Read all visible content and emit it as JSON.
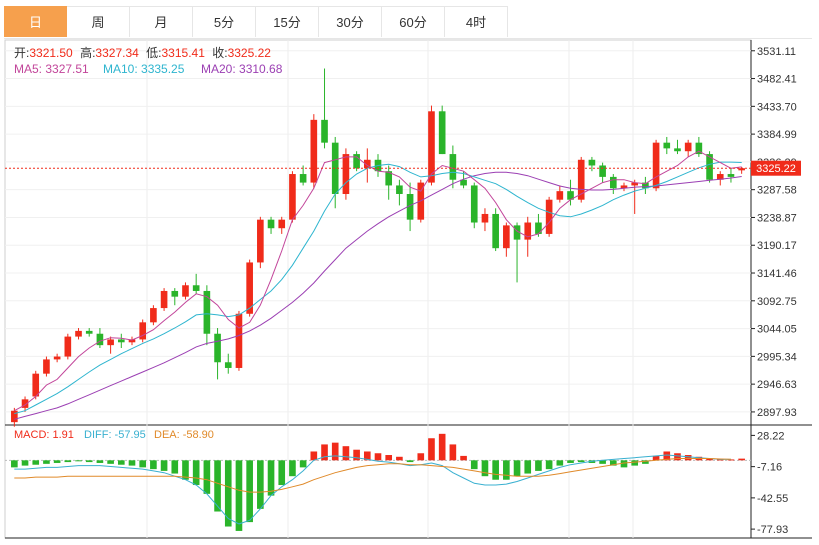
{
  "tabs": [
    "日",
    "周",
    "月",
    "5分",
    "15分",
    "30分",
    "60分",
    "4时"
  ],
  "active_tab": 0,
  "colors": {
    "up": "#f02b1a",
    "down": "#2ab42a",
    "ma5": "#c2459a",
    "ma10": "#2eb5cf",
    "ma20": "#9b3fb3",
    "dea": "#e08a2a",
    "diff": "#39b0d0"
  },
  "ohlc_legend": {
    "open_label": "开:",
    "open": "3321.50",
    "high_label": "高:",
    "high": "3327.34",
    "low_label": "低:",
    "low": "3315.41",
    "close_label": "收:",
    "close": "3325.22"
  },
  "ma_legend": {
    "ma5": "MA5: 3327.51",
    "ma10": "MA10: 3335.25",
    "ma20": "MA20: 3310.68"
  },
  "macd_legend": {
    "macd": "MACD: 1.91",
    "diff": "DIFF: -57.95",
    "dea": "DEA: -58.90"
  },
  "last_price": "3325.22",
  "chart_data": [
    {
      "type": "candlestick",
      "ylim": [
        2875,
        3550
      ],
      "y_ticks": [
        "3531.11",
        "3482.41",
        "3433.70",
        "3384.99",
        "3336.29",
        "3287.58",
        "3238.87",
        "3190.17",
        "3141.46",
        "3092.75",
        "3044.05",
        "2995.34",
        "2946.63",
        "2897.93"
      ],
      "y_tick_values": [
        3531.11,
        3482.41,
        3433.7,
        3384.99,
        3336.29,
        3287.58,
        3238.87,
        3190.17,
        3141.46,
        3092.75,
        3044.05,
        2995.34,
        2946.63,
        2897.93
      ],
      "candles": [
        [
          2880,
          2905,
          2872,
          2900
        ],
        [
          2905,
          2925,
          2898,
          2920
        ],
        [
          2925,
          2970,
          2920,
          2965
        ],
        [
          2965,
          2995,
          2960,
          2990
        ],
        [
          2990,
          3000,
          2985,
          2995
        ],
        [
          2995,
          3035,
          2990,
          3030
        ],
        [
          3030,
          3045,
          3025,
          3040
        ],
        [
          3040,
          3045,
          3030,
          3035
        ],
        [
          3035,
          3045,
          3010,
          3015
        ],
        [
          3015,
          3030,
          3000,
          3025
        ],
        [
          3025,
          3035,
          3010,
          3020
        ],
        [
          3020,
          3030,
          3015,
          3025
        ],
        [
          3025,
          3060,
          3020,
          3055
        ],
        [
          3055,
          3085,
          3050,
          3080
        ],
        [
          3080,
          3115,
          3075,
          3110
        ],
        [
          3110,
          3115,
          3085,
          3100
        ],
        [
          3100,
          3125,
          3095,
          3120
        ],
        [
          3120,
          3140,
          3105,
          3110
        ],
        [
          3110,
          3120,
          3015,
          3035
        ],
        [
          3035,
          3045,
          2955,
          2985
        ],
        [
          2985,
          3000,
          2965,
          2975
        ],
        [
          2975,
          3075,
          2970,
          3070
        ],
        [
          3070,
          3165,
          3065,
          3160
        ],
        [
          3160,
          3240,
          3150,
          3235
        ],
        [
          3235,
          3240,
          3210,
          3220
        ],
        [
          3220,
          3240,
          3210,
          3235
        ],
        [
          3235,
          3320,
          3230,
          3315
        ],
        [
          3315,
          3330,
          3295,
          3300
        ],
        [
          3300,
          3420,
          3290,
          3410
        ],
        [
          3410,
          3500,
          3360,
          3370
        ],
        [
          3370,
          3380,
          3255,
          3280
        ],
        [
          3280,
          3360,
          3270,
          3350
        ],
        [
          3350,
          3355,
          3320,
          3325
        ],
        [
          3325,
          3360,
          3300,
          3340
        ],
        [
          3340,
          3350,
          3310,
          3320
        ],
        [
          3320,
          3330,
          3270,
          3295
        ],
        [
          3295,
          3305,
          3260,
          3280
        ],
        [
          3280,
          3300,
          3215,
          3235
        ],
        [
          3235,
          3305,
          3230,
          3300
        ],
        [
          3300,
          3435,
          3295,
          3425
        ],
        [
          3425,
          3435,
          3350,
          3350
        ],
        [
          3350,
          3365,
          3290,
          3305
        ],
        [
          3305,
          3320,
          3290,
          3295
        ],
        [
          3295,
          3300,
          3220,
          3230
        ],
        [
          3230,
          3255,
          3215,
          3245
        ],
        [
          3245,
          3255,
          3180,
          3185
        ],
        [
          3185,
          3230,
          3170,
          3225
        ],
        [
          3225,
          3230,
          3125,
          3200
        ],
        [
          3200,
          3240,
          3170,
          3230
        ],
        [
          3230,
          3245,
          3205,
          3210
        ],
        [
          3210,
          3275,
          3205,
          3270
        ],
        [
          3270,
          3295,
          3265,
          3285
        ],
        [
          3285,
          3305,
          3260,
          3270
        ],
        [
          3270,
          3345,
          3265,
          3340
        ],
        [
          3340,
          3345,
          3320,
          3330
        ],
        [
          3330,
          3335,
          3300,
          3310
        ],
        [
          3310,
          3315,
          3280,
          3290
        ],
        [
          3290,
          3300,
          3285,
          3295
        ],
        [
          3295,
          3305,
          3245,
          3300
        ],
        [
          3300,
          3310,
          3280,
          3290
        ],
        [
          3290,
          3375,
          3285,
          3370
        ],
        [
          3370,
          3380,
          3350,
          3360
        ],
        [
          3360,
          3375,
          3350,
          3355
        ],
        [
          3355,
          3375,
          3345,
          3370
        ],
        [
          3370,
          3380,
          3345,
          3350
        ],
        [
          3350,
          3355,
          3300,
          3305
        ],
        [
          3305,
          3320,
          3295,
          3315
        ],
        [
          3315,
          3325,
          3300,
          3310
        ],
        [
          3321.5,
          3327.34,
          3315.41,
          3325.22
        ]
      ],
      "ma5": [
        2900,
        2910,
        2925,
        2945,
        2955,
        2975,
        2995,
        3010,
        3022,
        3028,
        3027,
        3024,
        3032,
        3042,
        3058,
        3073,
        3090,
        3105,
        3100,
        3085,
        3060,
        3045,
        3055,
        3085,
        3130,
        3180,
        3235,
        3260,
        3290,
        3335,
        3340,
        3345,
        3345,
        3330,
        3320,
        3318,
        3310,
        3292,
        3285,
        3315,
        3330,
        3325,
        3320,
        3305,
        3290,
        3265,
        3235,
        3215,
        3205,
        3210,
        3230,
        3255,
        3270,
        3280,
        3290,
        3300,
        3305,
        3305,
        3300,
        3298,
        3310,
        3320,
        3330,
        3345,
        3355,
        3345,
        3335,
        3325,
        3327.51
      ],
      "ma10": [
        2895,
        2900,
        2910,
        2920,
        2930,
        2942,
        2955,
        2968,
        2980,
        2990,
        3000,
        3009,
        3018,
        3026,
        3035,
        3045,
        3056,
        3068,
        3070,
        3068,
        3065,
        3068,
        3080,
        3095,
        3110,
        3130,
        3155,
        3185,
        3215,
        3250,
        3280,
        3300,
        3315,
        3325,
        3330,
        3332,
        3328,
        3318,
        3310,
        3312,
        3316,
        3318,
        3316,
        3310,
        3304,
        3298,
        3288,
        3276,
        3265,
        3255,
        3248,
        3242,
        3240,
        3245,
        3252,
        3260,
        3270,
        3278,
        3285,
        3290,
        3295,
        3302,
        3310,
        3318,
        3326,
        3332,
        3336,
        3336,
        3335.25
      ],
      "ma20": [
        2885,
        2890,
        2895,
        2900,
        2905,
        2912,
        2920,
        2928,
        2936,
        2944,
        2952,
        2960,
        2968,
        2976,
        2984,
        2993,
        3002,
        3012,
        3018,
        3022,
        3026,
        3032,
        3040,
        3050,
        3062,
        3076,
        3090,
        3106,
        3124,
        3145,
        3165,
        3185,
        3200,
        3215,
        3228,
        3240,
        3250,
        3260,
        3268,
        3278,
        3288,
        3298,
        3306,
        3312,
        3316,
        3318,
        3318,
        3316,
        3312,
        3306,
        3300,
        3294,
        3290,
        3288,
        3287,
        3287,
        3288,
        3290,
        3292,
        3293,
        3294,
        3296,
        3298,
        3300,
        3302,
        3304,
        3306,
        3308,
        3310.68
      ]
    },
    {
      "type": "bar",
      "ylim": [
        -88,
        40
      ],
      "y_ticks": [
        "28.22",
        "-7.16",
        "-42.55",
        "-77.93"
      ],
      "y_tick_values": [
        28.22,
        -7.16,
        -42.55,
        -77.93
      ],
      "macd": [
        -8,
        -6,
        -5,
        -4,
        -3,
        -2,
        -1,
        -2,
        -3,
        -4,
        -5,
        -6,
        -8,
        -10,
        -12,
        -15,
        -22,
        -28,
        -38,
        -58,
        -75,
        -80,
        -70,
        -55,
        -40,
        -28,
        -18,
        -8,
        10,
        18,
        20,
        16,
        12,
        10,
        8,
        6,
        4,
        -2,
        8,
        25,
        30,
        18,
        5,
        -10,
        -18,
        -22,
        -22,
        -18,
        -15,
        -12,
        -10,
        -6,
        -3,
        -2,
        -3,
        -4,
        -6,
        -8,
        -6,
        -4,
        5,
        10,
        8,
        6,
        4,
        2,
        1,
        1,
        1.91
      ],
      "diff": [
        -10,
        -10,
        -9,
        -8,
        -8,
        -7,
        -6,
        -6,
        -6,
        -7,
        -8,
        -9,
        -10,
        -12,
        -14,
        -18,
        -22,
        -28,
        -38,
        -52,
        -66,
        -72,
        -68,
        -55,
        -40,
        -30,
        -22,
        -12,
        0,
        4,
        5,
        4,
        3,
        1,
        -1,
        -2,
        -4,
        -6,
        -5,
        -3,
        -6,
        -14,
        -20,
        -26,
        -28,
        -28,
        -27,
        -24,
        -20,
        -16,
        -12,
        -8,
        -5,
        -3,
        -1,
        0,
        1,
        2,
        3,
        4,
        5,
        6,
        5,
        4,
        3,
        2,
        1,
        1,
        -57.95
      ],
      "dea": [
        -20,
        -20,
        -19,
        -19,
        -19,
        -18,
        -18,
        -18,
        -18,
        -18,
        -18,
        -18,
        -18,
        -18,
        -18,
        -18,
        -19,
        -20,
        -22,
        -26,
        -30,
        -34,
        -36,
        -36,
        -35,
        -33,
        -30,
        -27,
        -22,
        -18,
        -14,
        -11,
        -8,
        -6,
        -5,
        -4,
        -4,
        -5,
        -5,
        -6,
        -7,
        -8,
        -10,
        -12,
        -14,
        -16,
        -17,
        -18,
        -18,
        -18,
        -17,
        -15,
        -13,
        -11,
        -9,
        -7,
        -5,
        -3,
        -2,
        -1,
        0,
        1,
        2,
        2,
        2,
        2,
        1.5,
        1.2,
        -58.9
      ]
    }
  ]
}
